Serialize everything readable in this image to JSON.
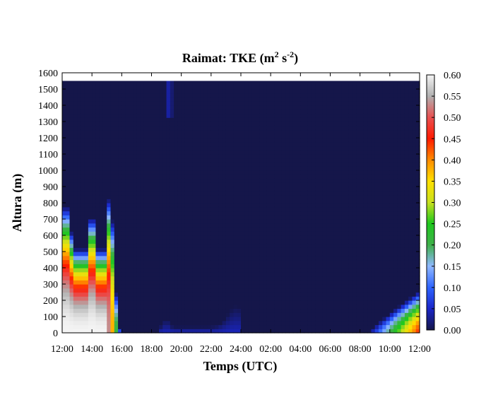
{
  "chart_data": {
    "type": "heatmap",
    "title": {
      "main": "Raimat: TKE (m",
      "sup1": "2",
      "mid": " s",
      "sup2": "-2",
      "end": ")"
    },
    "xlabel": "Temps (UTC)",
    "ylabel": "Altura (m)",
    "x_ticks": [
      "12:00",
      "14:00",
      "16:00",
      "18:00",
      "20:00",
      "22:00",
      "24:00",
      "02:00",
      "04:00",
      "06:00",
      "08:00",
      "10:00",
      "12:00"
    ],
    "y_ticks": [
      "0",
      "100",
      "200",
      "300",
      "400",
      "500",
      "600",
      "700",
      "800",
      "900",
      "1000",
      "1100",
      "1200",
      "1300",
      "1400",
      "1500",
      "1600"
    ],
    "x_range_hours": [
      0,
      24
    ],
    "y_range_m": [
      0,
      1600
    ],
    "data_top_m": 1550,
    "colorbar": {
      "ticks": [
        "0.00",
        "0.05",
        "0.10",
        "0.15",
        "0.20",
        "0.25",
        "0.30",
        "0.35",
        "0.40",
        "0.45",
        "0.50",
        "0.55",
        "0.60"
      ],
      "range": [
        0,
        0.6
      ],
      "colors": [
        "#15164a",
        "#1a26c8",
        "#2e64ff",
        "#8fb8ff",
        "#3fb04a",
        "#1ec81e",
        "#c8e01e",
        "#ffe000",
        "#ff8c00",
        "#ff1a00",
        "#e85050",
        "#b0b0b0",
        "#f4f4f4"
      ]
    },
    "features": [
      {
        "name": "daytime convective boundary layer",
        "hour_start": 0,
        "hour_end": 4,
        "peaks_hours": [
          0.25,
          2.0,
          3.2
        ],
        "peak_heights_m": [
          800,
          790,
          860
        ],
        "tke_max": 0.6
      },
      {
        "name": "night background",
        "tke": 0.0
      },
      {
        "name": "weak turbulence aloft",
        "hour": 7.2,
        "height_range_m": [
          1330,
          1560
        ],
        "tke": 0.05
      },
      {
        "name": "weak nocturnal turbulence",
        "hour_range": [
          6.5,
          12.0
        ],
        "height_max_m": 200,
        "tke": 0.05
      },
      {
        "name": "morning growth",
        "hour_start": 20.5,
        "hour_end": 24,
        "height_max_m": 260,
        "tke_max": 0.45
      }
    ]
  }
}
